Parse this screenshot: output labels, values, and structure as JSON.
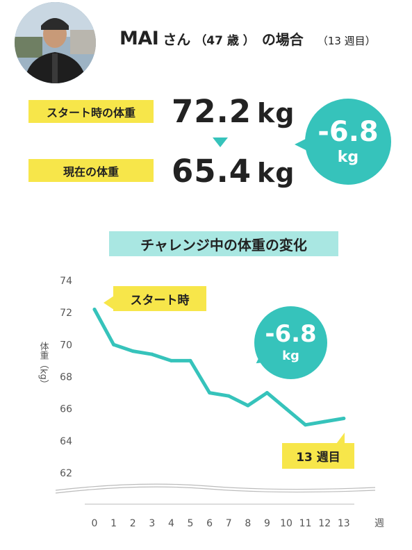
{
  "profile": {
    "name": "MAI",
    "honorific": "さん",
    "age": "（47 歳 ）",
    "case": "の場合",
    "weeks": "（13 週目）"
  },
  "summary": {
    "start_label": "スタート時の体重",
    "start_value": "72.2",
    "current_label": "現在の体重",
    "current_value": "65.4",
    "unit": "kg",
    "diff_value": "-6.8",
    "diff_unit": "kg"
  },
  "chart_data": {
    "type": "line",
    "title": "チャレンジ中の体重の変化",
    "ylabel": "体重（kg）",
    "xlabel": "週",
    "x": [
      0,
      1,
      2,
      3,
      4,
      5,
      6,
      7,
      8,
      9,
      10,
      11,
      12,
      13
    ],
    "values": [
      72.2,
      70.0,
      69.6,
      69.4,
      69.0,
      69.0,
      67.0,
      66.8,
      66.2,
      67.0,
      66.0,
      65.0,
      65.2,
      65.4
    ],
    "yticks": [
      62,
      64,
      66,
      68,
      70,
      72,
      74
    ],
    "ylim": [
      62,
      74
    ],
    "grid": false,
    "line_color": "#36c3bb",
    "annotations": {
      "start": "スタート時",
      "end": "13 週目",
      "diff_value": "-6.8",
      "diff_unit": "kg"
    }
  },
  "colors": {
    "accent": "#36c3bb",
    "highlight": "#f7e64a",
    "title_bg": "#a9e7e2"
  }
}
